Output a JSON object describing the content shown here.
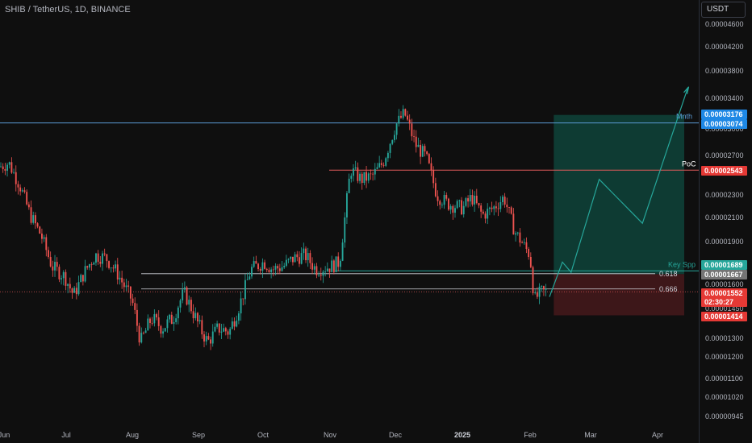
{
  "header": {
    "symbol_line": "SHIB / TetherUS, 1D, BINANCE"
  },
  "price_axis": {
    "unit_label": "USDT"
  },
  "chart_data": {
    "type": "candlestick",
    "title": "SHIB / TetherUS, 1D, BINANCE",
    "y_unit": "USDT",
    "y_scale": "log",
    "ylim": [
      9e-06,
      5e-06
    ],
    "y_ticks": [
      "0.00004600",
      "0.00004200",
      "0.00003800",
      "0.00003400",
      "0.00003000",
      "0.00002700",
      "0.00002300",
      "0.00002100",
      "0.00001900",
      "0.00001600",
      "0.00001450",
      "0.00001300",
      "0.00001200",
      "0.00001100",
      "0.00001020",
      "0.00000945"
    ],
    "x_ticks": [
      "Jun",
      "Jul",
      "Aug",
      "Sep",
      "Oct",
      "Nov",
      "Dec",
      "2025",
      "Feb",
      "Mar",
      "Apr"
    ],
    "close_series": [
      {
        "d": "2024-06-01",
        "c": 2.58e-05
      },
      {
        "d": "2024-06-05",
        "c": 2.62e-05
      },
      {
        "d": "2024-06-10",
        "c": 2.4e-05
      },
      {
        "d": "2024-06-15",
        "c": 2.12e-05
      },
      {
        "d": "2024-06-20",
        "c": 1.95e-05
      },
      {
        "d": "2024-06-25",
        "c": 1.72e-05
      },
      {
        "d": "2024-07-01",
        "c": 1.65e-05
      },
      {
        "d": "2024-07-05",
        "c": 1.53e-05
      },
      {
        "d": "2024-07-10",
        "c": 1.68e-05
      },
      {
        "d": "2024-07-15",
        "c": 1.8e-05
      },
      {
        "d": "2024-07-20",
        "c": 1.78e-05
      },
      {
        "d": "2024-07-25",
        "c": 1.68e-05
      },
      {
        "d": "2024-08-01",
        "c": 1.5e-05
      },
      {
        "d": "2024-08-05",
        "c": 1.28e-05
      },
      {
        "d": "2024-08-10",
        "c": 1.4e-05
      },
      {
        "d": "2024-08-15",
        "c": 1.35e-05
      },
      {
        "d": "2024-08-20",
        "c": 1.4e-05
      },
      {
        "d": "2024-08-25",
        "c": 1.55e-05
      },
      {
        "d": "2024-09-01",
        "c": 1.36e-05
      },
      {
        "d": "2024-09-05",
        "c": 1.28e-05
      },
      {
        "d": "2024-09-10",
        "c": 1.35e-05
      },
      {
        "d": "2024-09-15",
        "c": 1.33e-05
      },
      {
        "d": "2024-09-20",
        "c": 1.48e-05
      },
      {
        "d": "2024-09-25",
        "c": 1.7e-05
      },
      {
        "d": "2024-10-01",
        "c": 1.75e-05
      },
      {
        "d": "2024-10-05",
        "c": 1.7e-05
      },
      {
        "d": "2024-10-10",
        "c": 1.72e-05
      },
      {
        "d": "2024-10-15",
        "c": 1.78e-05
      },
      {
        "d": "2024-10-20",
        "c": 1.8e-05
      },
      {
        "d": "2024-10-25",
        "c": 1.7e-05
      },
      {
        "d": "2024-11-01",
        "c": 1.72e-05
      },
      {
        "d": "2024-11-05",
        "c": 1.75e-05
      },
      {
        "d": "2024-11-10",
        "c": 2.55e-05
      },
      {
        "d": "2024-11-15",
        "c": 2.45e-05
      },
      {
        "d": "2024-11-20",
        "c": 2.48e-05
      },
      {
        "d": "2024-11-25",
        "c": 2.62e-05
      },
      {
        "d": "2024-12-01",
        "c": 3.05e-05
      },
      {
        "d": "2024-12-05",
        "c": 3.2e-05
      },
      {
        "d": "2024-12-10",
        "c": 2.82e-05
      },
      {
        "d": "2024-12-15",
        "c": 2.68e-05
      },
      {
        "d": "2024-12-20",
        "c": 2.3e-05
      },
      {
        "d": "2024-12-25",
        "c": 2.22e-05
      },
      {
        "d": "2025-01-01",
        "c": 2.18e-05
      },
      {
        "d": "2025-01-05",
        "c": 2.28e-05
      },
      {
        "d": "2025-01-10",
        "c": 2.12e-05
      },
      {
        "d": "2025-01-15",
        "c": 2.18e-05
      },
      {
        "d": "2025-01-20",
        "c": 2.28e-05
      },
      {
        "d": "2025-01-25",
        "c": 1.98e-05
      },
      {
        "d": "2025-02-01",
        "c": 1.8e-05
      },
      {
        "d": "2025-02-03",
        "c": 1.5e-05
      },
      {
        "d": "2025-02-06",
        "c": 1.55e-05
      },
      {
        "d": "2025-02-09",
        "c": 1.552e-05
      }
    ],
    "horizontal_levels": [
      {
        "label": "Mnth",
        "price_label": "0.00003074",
        "value": 3.074e-05,
        "color": "#5b9bd5"
      },
      {
        "label": "PoC",
        "price_label": "0.00002543",
        "value": 2.543e-05,
        "color": "#e05a5a"
      },
      {
        "label": "Key Spp",
        "price_label": "0.00001689",
        "value": 1.689e-05,
        "color": "#26a69a"
      },
      {
        "label": "0.618",
        "value": 1.67e-05,
        "color": "#d1d4dc"
      },
      {
        "label": "0.666",
        "value": 1.57e-05,
        "color": "#d1d4dc"
      }
    ],
    "price_badges": [
      {
        "text": "0.00003176",
        "color": "#1e88e5"
      },
      {
        "text": "0.00003074",
        "color": "#1e88e5"
      },
      {
        "text": "0.00002543",
        "color": "#e53935"
      },
      {
        "text": "0.00001689",
        "color": "#26a69a"
      },
      {
        "text": "0.00001667",
        "color": "#757575"
      },
      {
        "text": "0.00001552",
        "color": "#e53935"
      },
      {
        "text": "02:30:27",
        "color": "#e53935"
      },
      {
        "text": "0.00001414",
        "color": "#e53935"
      }
    ],
    "position": {
      "entry": 1.667e-05,
      "target": 3.176e-05,
      "stop": 1.414e-05
    },
    "projection_path": [
      {
        "d": "2025-02-10",
        "v": 1.52e-05
      },
      {
        "d": "2025-02-16",
        "v": 1.75e-05
      },
      {
        "d": "2025-02-20",
        "v": 1.68e-05
      },
      {
        "d": "2025-03-05",
        "v": 2.45e-05
      },
      {
        "d": "2025-03-25",
        "v": 2.05e-05
      },
      {
        "d": "2025-04-15",
        "v": 3.55e-05
      }
    ]
  }
}
